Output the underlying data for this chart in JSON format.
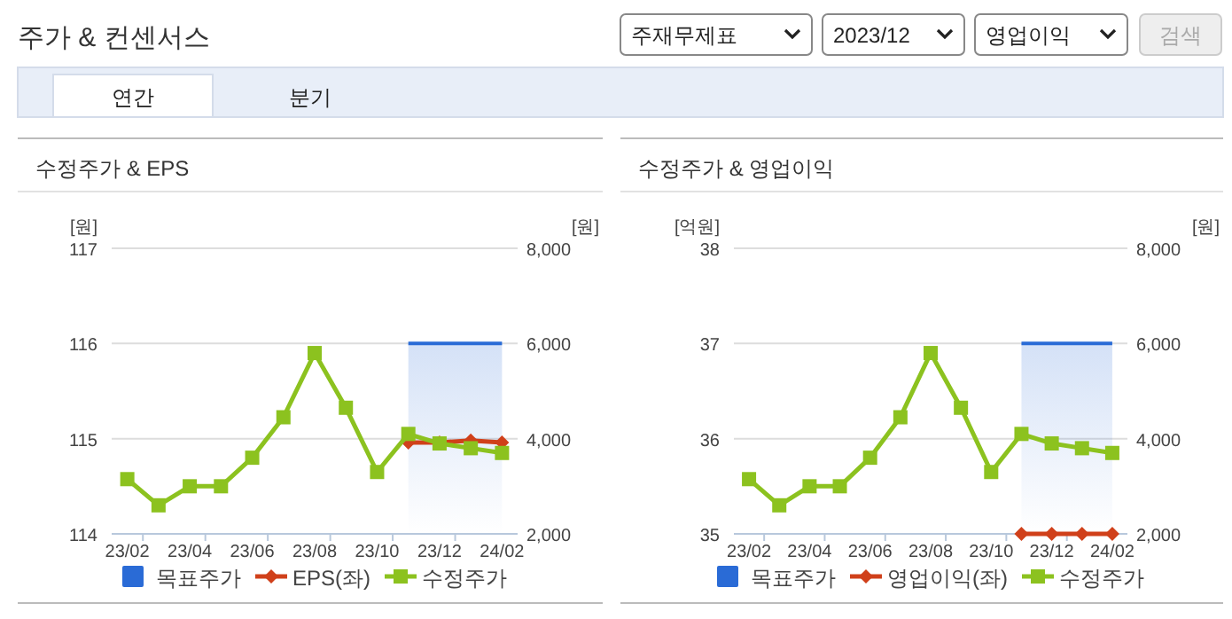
{
  "chart_data": [
    {
      "type": "other",
      "title": "주가 & 컨센서스",
      "annotations": [
        "주재무제표",
        "2023/12",
        "영업이익",
        "검색",
        "연간",
        "분기"
      ]
    },
    {
      "type": "line",
      "title": "수정주가 & EPS",
      "ylabel": "[원]",
      "y2label": "[원]",
      "categories": [
        "23/02",
        null,
        "23/04",
        null,
        "23/06",
        null,
        "23/08",
        null,
        "23/10",
        null,
        "23/12",
        null,
        "24/02"
      ],
      "ylim": [
        114,
        117
      ],
      "yticks": [
        114,
        115,
        116,
        117
      ],
      "y2lim": [
        2000,
        8000
      ],
      "y2ticks": [
        {
          "value": 2000,
          "label": "2,000"
        },
        {
          "value": 4000,
          "label": "4,000"
        },
        {
          "value": 6000,
          "label": "6,000"
        },
        {
          "value": 8000,
          "label": "8,000"
        }
      ],
      "grid": "y",
      "legend": "bottom",
      "series": [
        {
          "name": "목표주가",
          "type": "area",
          "axis": "y2",
          "color": "#2a6bd6",
          "values": [
            null,
            null,
            null,
            null,
            null,
            null,
            null,
            null,
            null,
            6000,
            6000,
            6000,
            6000
          ]
        },
        {
          "name": "EPS(좌)",
          "type": "line",
          "axis": "y",
          "color": "#d0401a",
          "marker": "diamond",
          "values": [
            null,
            null,
            null,
            null,
            null,
            null,
            null,
            null,
            null,
            114.96,
            114.96,
            114.98,
            114.96
          ]
        },
        {
          "name": "수정주가",
          "type": "line",
          "axis": "y2",
          "color": "#8cc21f",
          "marker": "square",
          "values": [
            3150,
            2600,
            3000,
            3000,
            3600,
            4450,
            5800,
            4650,
            3300,
            4100,
            3900,
            3800,
            3700
          ]
        }
      ]
    },
    {
      "type": "line",
      "title": "수정주가 & 영업이익",
      "ylabel": "[억원]",
      "y2label": "[원]",
      "categories": [
        "23/02",
        null,
        "23/04",
        null,
        "23/06",
        null,
        "23/08",
        null,
        "23/10",
        null,
        "23/12",
        null,
        "24/02"
      ],
      "ylim": [
        35,
        38
      ],
      "yticks": [
        35,
        36,
        37,
        38
      ],
      "y2lim": [
        2000,
        8000
      ],
      "y2ticks": [
        {
          "value": 2000,
          "label": "2,000"
        },
        {
          "value": 4000,
          "label": "4,000"
        },
        {
          "value": 6000,
          "label": "6,000"
        },
        {
          "value": 8000,
          "label": "8,000"
        }
      ],
      "grid": "y",
      "legend": "bottom",
      "series": [
        {
          "name": "목표주가",
          "type": "area",
          "axis": "y2",
          "color": "#2a6bd6",
          "values": [
            null,
            null,
            null,
            null,
            null,
            null,
            null,
            null,
            null,
            6000,
            6000,
            6000,
            6000
          ]
        },
        {
          "name": "영업이익(좌)",
          "type": "line",
          "axis": "y",
          "color": "#d0401a",
          "marker": "diamond",
          "values": [
            null,
            null,
            null,
            null,
            null,
            null,
            null,
            null,
            null,
            35,
            35,
            35,
            35
          ]
        },
        {
          "name": "수정주가",
          "type": "line",
          "axis": "y2",
          "color": "#8cc21f",
          "marker": "square",
          "values": [
            3150,
            2600,
            3000,
            3000,
            3600,
            4450,
            5800,
            4650,
            3300,
            4100,
            3900,
            3800,
            3700
          ]
        }
      ]
    }
  ]
}
